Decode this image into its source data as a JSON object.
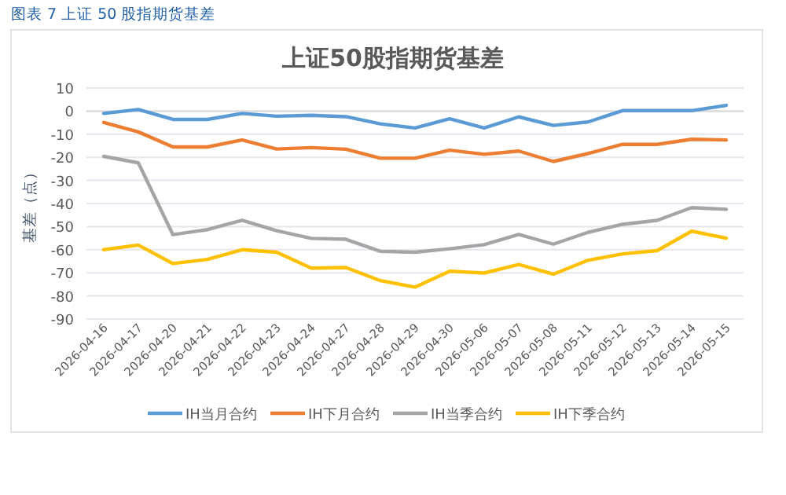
{
  "chart_data": {
    "type": "line",
    "title": "上证50股指期货基差",
    "ylabel": "基差（点）",
    "annotations": [
      "图表 7 上证 50 股指期货基差"
    ],
    "categories": [
      "2026-04-16",
      "2026-04-17",
      "2026-04-20",
      "2026-04-21",
      "2026-04-22",
      "2026-04-23",
      "2026-04-24",
      "2026-04-27",
      "2026-04-28",
      "2026-04-29",
      "2026-04-30",
      "2026-05-06",
      "2026-05-07",
      "2026-05-08",
      "2026-05-11",
      "2026-05-12",
      "2026-05-13",
      "2026-05-14",
      "2026-05-15"
    ],
    "series": [
      {
        "name": "IH当月合约",
        "color": "#5b9bd5",
        "values": [
          -1,
          0.7,
          -3.6,
          -3.6,
          -1,
          -2.2,
          -1.8,
          -2.4,
          -5.5,
          -7.3,
          -3.3,
          -7.3,
          -2.5,
          -6.2,
          -4.7,
          0.2,
          0.2,
          0.2,
          2.5
        ]
      },
      {
        "name": "IH下月合约",
        "color": "#ed7d31",
        "values": [
          -4.9,
          -9,
          -15.5,
          -15.5,
          -12.5,
          -16.4,
          -15.8,
          -16.5,
          -20.4,
          -20.4,
          -16.9,
          -18.7,
          -17.3,
          -21.8,
          -18.4,
          -14.4,
          -14.4,
          -12.2,
          -12.5
        ]
      },
      {
        "name": "IH当季合约",
        "color": "#a5a5a5",
        "values": [
          -19.6,
          -22.4,
          -53.5,
          -51.3,
          -47.3,
          -51.8,
          -55.1,
          -55.5,
          -60.7,
          -61.1,
          -59.6,
          -57.8,
          -53.4,
          -57.6,
          -52.5,
          -49,
          -47.3,
          -41.8,
          -42.5
        ]
      },
      {
        "name": "IH下季合约",
        "color": "#ffc000",
        "values": [
          -60,
          -58,
          -66,
          -64.2,
          -60,
          -61.1,
          -68,
          -67.7,
          -73.4,
          -76.2,
          -69.3,
          -70.1,
          -66.4,
          -70.6,
          -64.6,
          -61.8,
          -60.4,
          -52,
          -55
        ]
      }
    ],
    "ylim": [
      -90,
      10
    ],
    "yticks": [
      -90,
      -80,
      -70,
      -60,
      -50,
      -40,
      -30,
      -20,
      -10,
      0,
      10
    ],
    "grid": "y",
    "legend": "bottom",
    "marker": "none",
    "line_style": "solid"
  }
}
